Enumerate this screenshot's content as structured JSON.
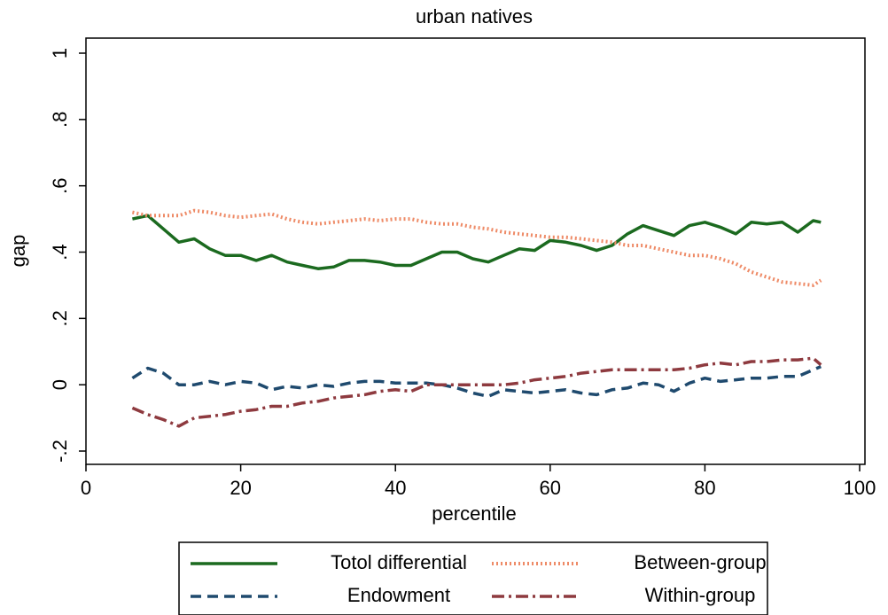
{
  "chart_data": {
    "type": "line",
    "title": "urban natives",
    "x_label": "percentile",
    "y_label": "gap",
    "x": [
      6,
      8,
      10,
      12,
      14,
      16,
      18,
      20,
      22,
      24,
      26,
      28,
      30,
      32,
      34,
      36,
      38,
      40,
      42,
      44,
      46,
      48,
      50,
      52,
      54,
      56,
      58,
      60,
      62,
      64,
      66,
      68,
      70,
      72,
      74,
      76,
      78,
      80,
      82,
      84,
      86,
      88,
      90,
      92,
      94,
      95
    ],
    "series": [
      {
        "name": "Totol differential",
        "color": "#1b6a1f",
        "dash": "solid",
        "values": [
          0.5,
          0.51,
          0.47,
          0.43,
          0.44,
          0.41,
          0.39,
          0.39,
          0.375,
          0.39,
          0.37,
          0.36,
          0.35,
          0.355,
          0.375,
          0.375,
          0.37,
          0.36,
          0.36,
          0.38,
          0.4,
          0.4,
          0.38,
          0.37,
          0.39,
          0.41,
          0.405,
          0.435,
          0.43,
          0.42,
          0.405,
          0.42,
          0.455,
          0.48,
          0.465,
          0.45,
          0.48,
          0.49,
          0.475,
          0.455,
          0.49,
          0.485,
          0.49,
          0.46,
          0.495,
          0.49
        ]
      },
      {
        "name": "Between-group",
        "color": "#ee8a66",
        "dash": "dotted",
        "values": [
          0.52,
          0.51,
          0.51,
          0.51,
          0.525,
          0.52,
          0.51,
          0.505,
          0.51,
          0.515,
          0.5,
          0.49,
          0.485,
          0.49,
          0.495,
          0.5,
          0.495,
          0.5,
          0.5,
          0.49,
          0.485,
          0.485,
          0.475,
          0.47,
          0.46,
          0.455,
          0.45,
          0.445,
          0.445,
          0.44,
          0.435,
          0.43,
          0.42,
          0.42,
          0.41,
          0.4,
          0.39,
          0.39,
          0.38,
          0.365,
          0.34,
          0.325,
          0.31,
          0.305,
          0.3,
          0.315
        ]
      },
      {
        "name": "Endowment",
        "color": "#1f4a6e",
        "dash": "dashed",
        "values": [
          0.02,
          0.05,
          0.035,
          0.0,
          0.0,
          0.01,
          0.0,
          0.01,
          0.005,
          -0.015,
          -0.005,
          -0.01,
          0.0,
          -0.005,
          0.005,
          0.01,
          0.01,
          0.005,
          0.005,
          0.005,
          0.0,
          -0.01,
          -0.025,
          -0.035,
          -0.015,
          -0.02,
          -0.025,
          -0.02,
          -0.015,
          -0.025,
          -0.03,
          -0.015,
          -0.01,
          0.005,
          0.0,
          -0.02,
          0.005,
          0.02,
          0.01,
          0.015,
          0.02,
          0.02,
          0.025,
          0.025,
          0.045,
          0.055
        ]
      },
      {
        "name": "Within-group",
        "color": "#8e3a3f",
        "dash": "dashdot",
        "values": [
          -0.07,
          -0.09,
          -0.105,
          -0.125,
          -0.1,
          -0.095,
          -0.09,
          -0.08,
          -0.075,
          -0.065,
          -0.065,
          -0.055,
          -0.05,
          -0.04,
          -0.035,
          -0.03,
          -0.02,
          -0.015,
          -0.02,
          0.0,
          0.0,
          0.0,
          0.0,
          0.0,
          0.0,
          0.005,
          0.015,
          0.02,
          0.025,
          0.035,
          0.04,
          0.045,
          0.045,
          0.045,
          0.045,
          0.045,
          0.05,
          0.06,
          0.065,
          0.06,
          0.07,
          0.07,
          0.075,
          0.075,
          0.08,
          0.06
        ]
      }
    ],
    "xlim": [
      0,
      100
    ],
    "xticks": [
      0,
      20,
      40,
      60,
      80,
      100
    ],
    "ylim": [
      -0.2,
      1
    ],
    "yticks": [
      {
        "value": -0.2,
        "label": "-.2"
      },
      {
        "value": 0,
        "label": "0"
      },
      {
        "value": 0.2,
        "label": ".2"
      },
      {
        "value": 0.4,
        "label": ".4"
      },
      {
        "value": 0.6,
        "label": ".6"
      },
      {
        "value": 0.8,
        "label": ".8"
      },
      {
        "value": 1,
        "label": "1"
      }
    ],
    "legend": "bottom"
  }
}
